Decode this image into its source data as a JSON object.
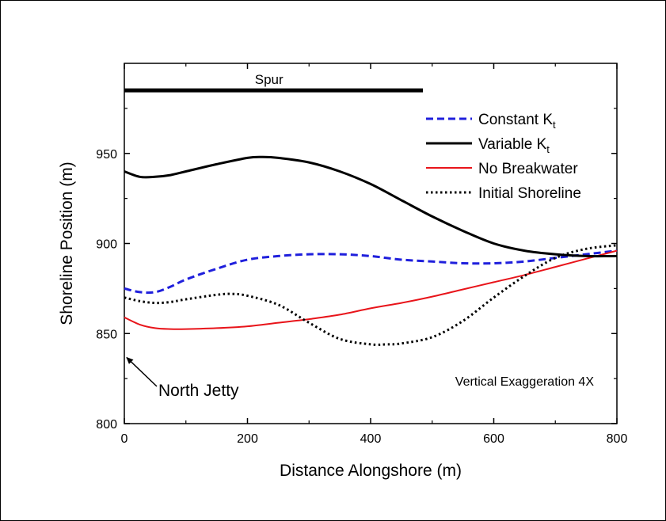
{
  "chart_data": {
    "type": "line",
    "xlabel": "Distance Alongshore (m)",
    "ylabel": "Shoreline Position (m)",
    "xlim": [
      0,
      800
    ],
    "ylim": [
      800,
      1000
    ],
    "xticks": [
      "0",
      "200",
      "400",
      "600",
      "800"
    ],
    "yticks": [
      "800",
      "850",
      "900",
      "950"
    ],
    "grid": false,
    "legend_position": "top-right",
    "colors": {
      "constant": "#1f1fdc",
      "variable": "#000000",
      "nobreakwater": "#e8141a",
      "initial": "#000000"
    },
    "series": [
      {
        "name": "Constant K",
        "subscript": "t",
        "style": "dashed",
        "x": [
          0,
          25,
          50,
          75,
          100,
          150,
          200,
          250,
          300,
          350,
          400,
          450,
          500,
          550,
          600,
          650,
          700,
          750,
          800
        ],
        "y": [
          875,
          873,
          873,
          876,
          880,
          886,
          891,
          893,
          894,
          894,
          893,
          891,
          890,
          889,
          889,
          890,
          892,
          894,
          896
        ]
      },
      {
        "name": "Variable K",
        "subscript": "t",
        "style": "solid-thick",
        "x": [
          0,
          25,
          50,
          75,
          100,
          150,
          200,
          225,
          250,
          300,
          350,
          400,
          450,
          500,
          550,
          600,
          650,
          700,
          750,
          800
        ],
        "y": [
          940,
          937,
          937,
          938,
          940,
          944,
          947.5,
          948,
          947.5,
          945,
          940,
          933,
          924,
          915,
          907,
          900,
          896,
          894,
          893,
          893
        ]
      },
      {
        "name": "No Breakwater",
        "style": "solid-thin",
        "x": [
          0,
          25,
          50,
          75,
          100,
          150,
          200,
          250,
          300,
          350,
          400,
          450,
          500,
          550,
          600,
          650,
          700,
          750,
          800
        ],
        "y": [
          859,
          855,
          853,
          852.5,
          852.5,
          853,
          854,
          856,
          858,
          860.5,
          864,
          867,
          870.5,
          874.5,
          878.5,
          882.5,
          887,
          891.5,
          896
        ]
      },
      {
        "name": "Initial Shoreline",
        "style": "dotted",
        "x": [
          0,
          25,
          50,
          75,
          100,
          150,
          175,
          200,
          250,
          300,
          350,
          400,
          425,
          450,
          500,
          550,
          600,
          650,
          700,
          750,
          800
        ],
        "y": [
          870,
          868,
          867,
          867.5,
          869,
          871.5,
          872,
          871,
          866,
          856,
          847,
          844,
          844,
          844.5,
          848,
          857,
          870,
          882,
          892,
          897,
          899
        ]
      }
    ],
    "spur": {
      "label": "Spur",
      "x": [
        0,
        485
      ],
      "y": 985
    },
    "annotations": {
      "north_jetty": {
        "label": "North Jetty",
        "arrow_to": [
          0,
          838
        ]
      },
      "exaggeration": {
        "label": "Vertical Exaggeration 4X"
      }
    }
  }
}
